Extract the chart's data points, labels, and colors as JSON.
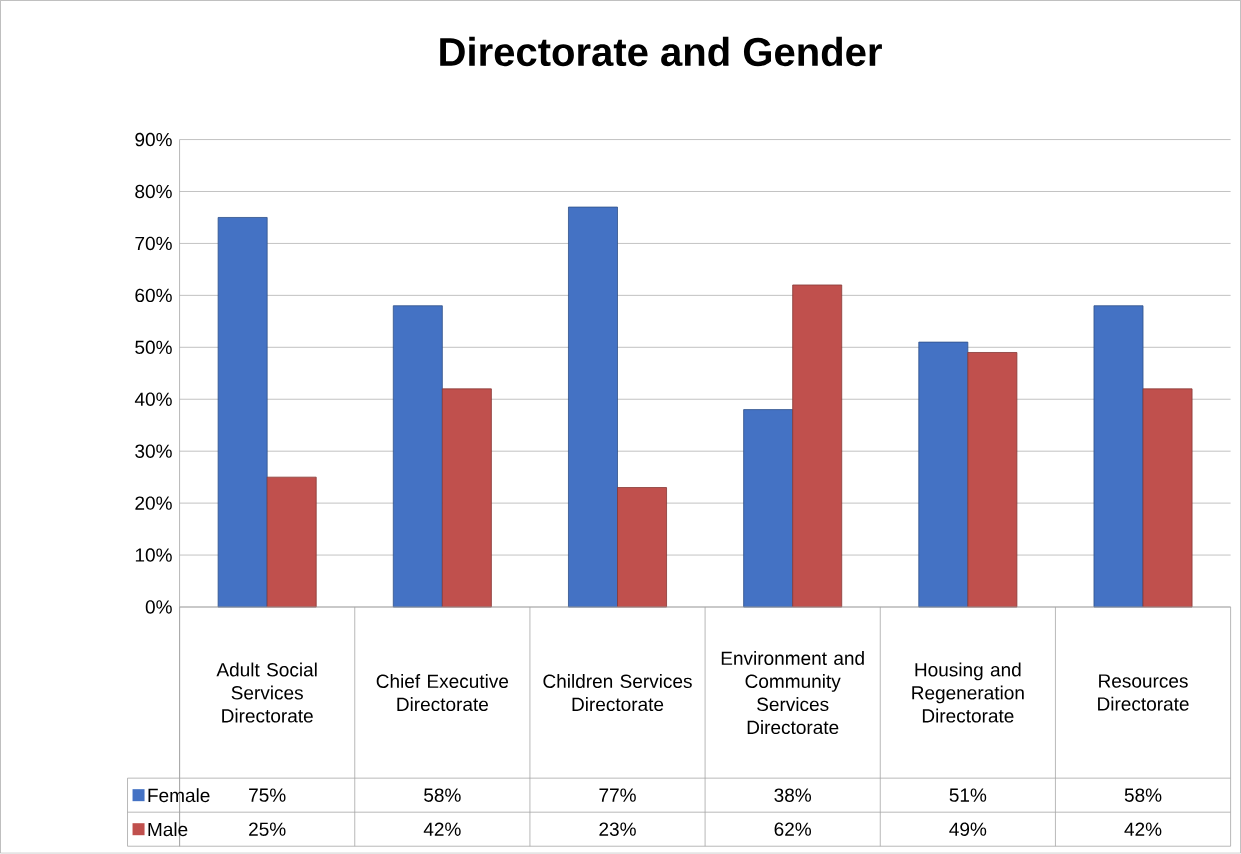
{
  "chart_data": {
    "type": "bar",
    "title": "Directorate and Gender",
    "categories": [
      "Adult Social Services Directorate",
      "Chief Executive Directorate",
      "Children Services Directorate",
      "Environment and Community Services Directorate",
      "Housing and Regeneration Directorate",
      "Resources Directorate"
    ],
    "series": [
      {
        "name": "Female",
        "color": "#4472c4",
        "values": [
          75,
          58,
          77,
          38,
          51,
          58
        ],
        "value_labels": [
          "75%",
          "58%",
          "77%",
          "38%",
          "51%",
          "58%"
        ]
      },
      {
        "name": "Male",
        "color": "#c0504d",
        "values": [
          25,
          42,
          23,
          62,
          49,
          42
        ],
        "value_labels": [
          "25%",
          "42%",
          "23%",
          "62%",
          "49%",
          "42%"
        ]
      }
    ],
    "ylim": [
      0,
      90
    ],
    "yticks": [
      {
        "value": 0,
        "label": "0%"
      },
      {
        "value": 10,
        "label": "10%"
      },
      {
        "value": 20,
        "label": "20%"
      },
      {
        "value": 30,
        "label": "30%"
      },
      {
        "value": 40,
        "label": "40%"
      },
      {
        "value": 50,
        "label": "50%"
      },
      {
        "value": 60,
        "label": "60%"
      },
      {
        "value": 70,
        "label": "70%"
      },
      {
        "value": 80,
        "label": "80%"
      },
      {
        "value": 90,
        "label": "90%"
      }
    ],
    "grid": "y",
    "legend": "bottom"
  }
}
